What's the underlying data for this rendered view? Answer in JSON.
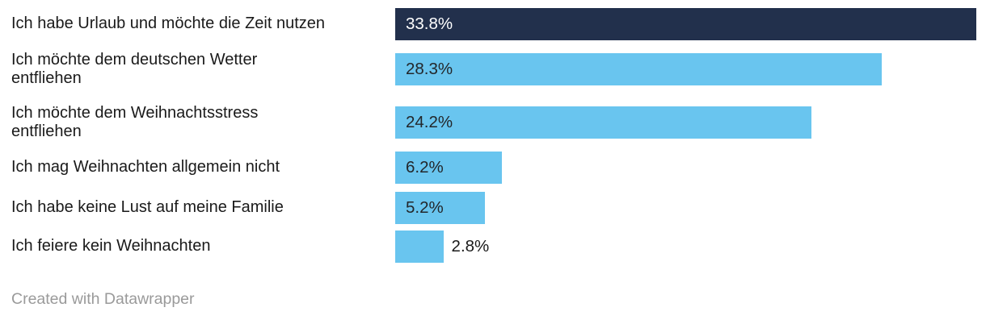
{
  "chart_data": {
    "type": "bar",
    "orientation": "horizontal",
    "title": "",
    "xlabel": "",
    "ylabel": "",
    "unit": "%",
    "xlim": [
      0,
      33.8
    ],
    "gridlines": false,
    "legend": false,
    "categories": [
      "Ich habe Urlaub und möchte die Zeit nutzen",
      "Ich möchte dem deutschen Wetter entfliehen",
      "Ich möchte dem Weihnachtsstress entfliehen",
      "Ich mag Weihnachten allgemein nicht",
      "Ich habe keine Lust auf meine Familie",
      "Ich feiere kein Weihnachten"
    ],
    "values": [
      33.8,
      28.3,
      24.2,
      6.2,
      5.2,
      2.8
    ],
    "rows": [
      {
        "category": "Ich habe Urlaub und möchte die Zeit nutzen",
        "category_display": "Ich habe Urlaub und möchte die Zeit nutzen",
        "value": 33.8,
        "value_label": "33.8%",
        "bar_color": "#22304c",
        "value_label_color": "#ffffff",
        "value_label_position": "inside"
      },
      {
        "category": "Ich möchte dem deutschen Wetter entfliehen",
        "category_display": "Ich möchte dem deutschen Wetter\nentfliehen",
        "value": 28.3,
        "value_label": "28.3%",
        "bar_color": "#69c5ef",
        "value_label_color": "#23272b",
        "value_label_position": "inside"
      },
      {
        "category": "Ich möchte dem Weihnachtsstress entfliehen",
        "category_display": "Ich möchte dem Weihnachtsstress\nentfliehen",
        "value": 24.2,
        "value_label": "24.2%",
        "bar_color": "#69c5ef",
        "value_label_color": "#23272b",
        "value_label_position": "inside"
      },
      {
        "category": "Ich mag Weihnachten allgemein nicht",
        "category_display": "Ich mag Weihnachten allgemein nicht",
        "value": 6.2,
        "value_label": "6.2%",
        "bar_color": "#69c5ef",
        "value_label_color": "#23272b",
        "value_label_position": "inside"
      },
      {
        "category": "Ich habe keine Lust auf meine Familie",
        "category_display": "Ich habe keine Lust auf meine Familie",
        "value": 5.2,
        "value_label": "5.2%",
        "bar_color": "#69c5ef",
        "value_label_color": "#23272b",
        "value_label_position": "inside"
      },
      {
        "category": "Ich feiere kein Weihnachten",
        "category_display": "Ich feiere kein Weihnachten",
        "value": 2.8,
        "value_label": "2.8%",
        "bar_color": "#69c5ef",
        "value_label_color": "#1a1a1a",
        "value_label_position": "outside"
      }
    ]
  },
  "colors": {
    "accent_dark": "#22304c",
    "accent_light": "#69c5ef",
    "text": "#1a1a1a",
    "muted": "#9a9a9a",
    "background": "#ffffff"
  },
  "footer": {
    "credit": "Created with Datawrapper"
  }
}
